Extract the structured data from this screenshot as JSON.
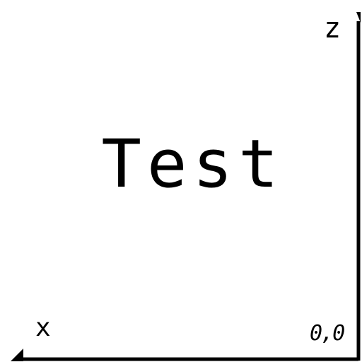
{
  "content": {
    "main_text": "Test"
  },
  "axes": {
    "z_label": "z",
    "x_label": "x",
    "origin_label": "0,0"
  },
  "colors": {
    "background": "#ffffff",
    "foreground": "#000000"
  }
}
